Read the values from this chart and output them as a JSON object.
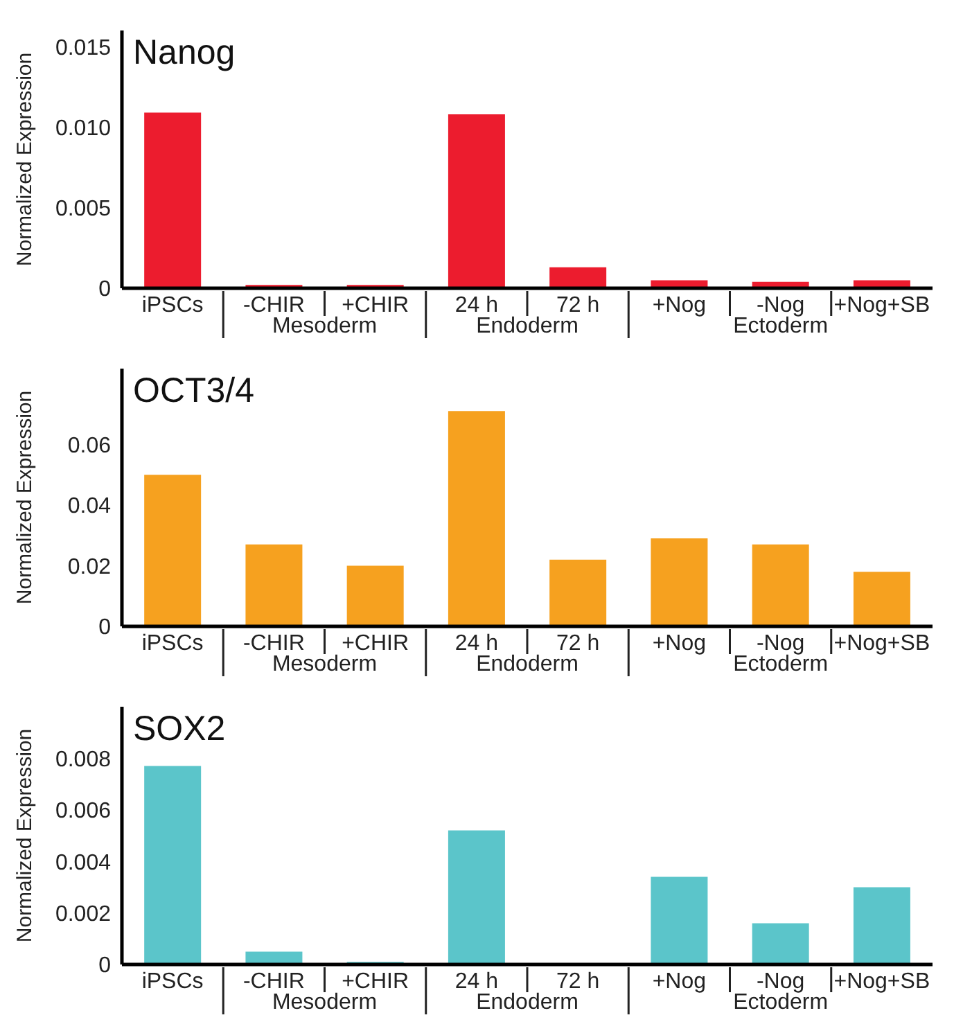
{
  "chart_data": [
    {
      "type": "bar",
      "title": "Nanog",
      "ylabel": "Normalized Expression",
      "categories": [
        "iPSCs",
        "-CHIR",
        "+CHIR",
        "24 h",
        "72 h",
        "+Nog",
        "-Nog",
        "+Nog+SB"
      ],
      "values": [
        0.0109,
        0.0002,
        0.0002,
        0.0108,
        0.0013,
        0.0005,
        0.0004,
        0.0005
      ],
      "color": "#ec1c2e",
      "ylim": [
        0,
        0.016
      ],
      "yticks": [
        0,
        0.005,
        {
          "value": 0.01,
          "label": "0.010"
        },
        0.015
      ],
      "annotations": [
        "Mesoderm",
        "Endoderm",
        "Ectoderm"
      ]
    },
    {
      "type": "bar",
      "title": "OCT3/4",
      "ylabel": "Normalized Expression",
      "categories": [
        "iPSCs",
        "-CHIR",
        "+CHIR",
        "24 h",
        "72 h",
        "+Nog",
        "-Nog",
        "+Nog+SB"
      ],
      "values": [
        0.05,
        0.027,
        0.02,
        0.071,
        0.022,
        0.029,
        0.027,
        0.018
      ],
      "color": "#f6a11f",
      "ylim": [
        0,
        0.085
      ],
      "yticks": [
        0,
        0.02,
        0.04,
        0.06
      ],
      "annotations": [
        "Mesoderm",
        "Endoderm",
        "Ectoderm"
      ]
    },
    {
      "type": "bar",
      "title": "SOX2",
      "ylabel": "Normalized Expression",
      "categories": [
        "iPSCs",
        "-CHIR",
        "+CHIR",
        "24 h",
        "72 h",
        "+Nog",
        "-Nog",
        "+Nog+SB"
      ],
      "values": [
        0.0077,
        0.0005,
        0.0001,
        0.0052,
        0,
        0.0034,
        0.0016,
        0.003
      ],
      "color": "#5bc5ca",
      "ylim": [
        0,
        0.01
      ],
      "yticks": [
        0,
        0.002,
        0.004,
        0.006,
        0.008
      ],
      "annotations": [
        "Mesoderm",
        "Endoderm",
        "Ectoderm"
      ]
    }
  ]
}
